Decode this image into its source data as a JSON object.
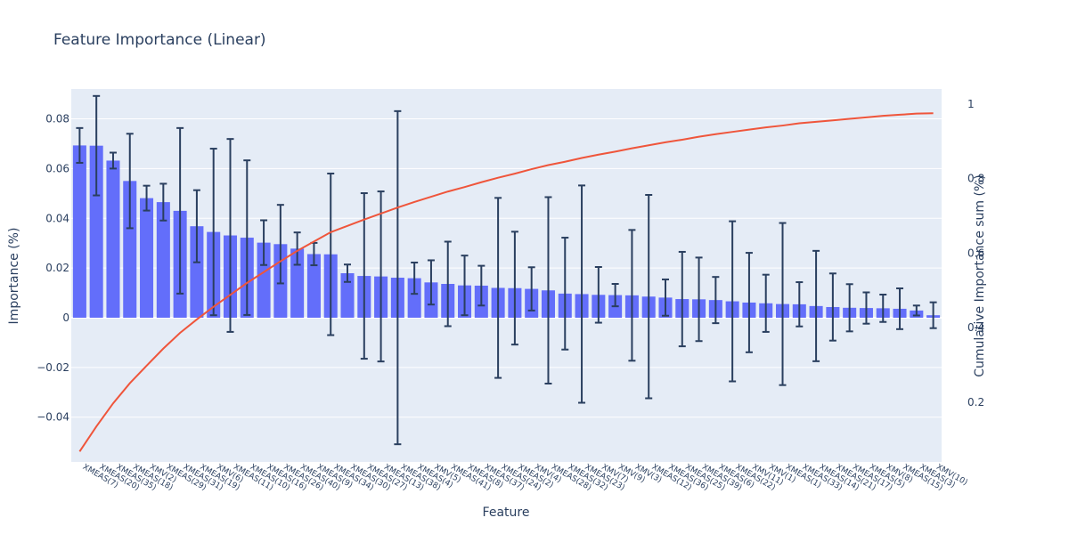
{
  "chart_data": {
    "type": "bar",
    "title": "Feature Importance (Linear)",
    "xlabel": "Feature",
    "ylabel": "Importance (%)",
    "y2label": "Cumulative Importance sum (%)",
    "ylim": [
      -0.058,
      0.092
    ],
    "y2lim": [
      0.04,
      1.04
    ],
    "yticks": [
      -0.04,
      -0.02,
      0,
      0.02,
      0.04,
      0.06,
      0.08
    ],
    "ytick_labels": [
      "−0.04",
      "−0.02",
      "0",
      "0.02",
      "0.04",
      "0.06",
      "0.08"
    ],
    "y2ticks": [
      0.2,
      0.4,
      0.6,
      0.8,
      1
    ],
    "y2tick_labels": [
      "0.2",
      "0.4",
      "0.6",
      "0.8",
      "1"
    ],
    "categories": [
      "XMEAS(7)",
      "XMEAS(20)",
      "XMEAS(35)",
      "XMEAS(18)",
      "XMV(2)",
      "XMEAS(29)",
      "XMEAS(31)",
      "XMEAS(19)",
      "XMV(6)",
      "XMEAS(11)",
      "XMEAS(10)",
      "XMEAS(16)",
      "XMEAS(26)",
      "XMEAS(40)",
      "XMEAS(9)",
      "XMEAS(34)",
      "XMEAS(30)",
      "XMEAS(27)",
      "XMEAS(13)",
      "XMEAS(38)",
      "XMEAS(4)",
      "XMV(5)",
      "XMEAS(41)",
      "XMEAS(8)",
      "XMEAS(37)",
      "XMEAS(24)",
      "XMEAS(2)",
      "XMV(4)",
      "XMEAS(28)",
      "XMEAS(32)",
      "XMEAS(23)",
      "XMV(7)",
      "XMV(9)",
      "XMV(3)",
      "XMEAS(12)",
      "XMEAS(36)",
      "XMEAS(25)",
      "XMEAS(39)",
      "XMEAS(6)",
      "XMEAS(22)",
      "XMV(11)",
      "XMV(1)",
      "XMEAS(1)",
      "XMEAS(33)",
      "XMEAS(14)",
      "XMEAS(21)",
      "XMEAS(17)",
      "XMEAS(5)",
      "XMV(8)",
      "XMEAS(15)",
      "XMEAS(3)",
      "XMV(10)"
    ],
    "series": [
      {
        "name": "Importance",
        "type": "bar",
        "color": "#636efa",
        "values": [
          0.0693,
          0.0692,
          0.0632,
          0.055,
          0.0481,
          0.0465,
          0.043,
          0.0368,
          0.0345,
          0.0331,
          0.0322,
          0.0302,
          0.0296,
          0.0278,
          0.0256,
          0.0255,
          0.0179,
          0.0168,
          0.0166,
          0.0161,
          0.0159,
          0.0142,
          0.0136,
          0.013,
          0.0129,
          0.012,
          0.0119,
          0.0116,
          0.011,
          0.0097,
          0.0095,
          0.0092,
          0.0091,
          0.009,
          0.0085,
          0.0081,
          0.0075,
          0.0074,
          0.0071,
          0.0066,
          0.0061,
          0.0058,
          0.0055,
          0.0054,
          0.0047,
          0.0043,
          0.004,
          0.0039,
          0.0038,
          0.0036,
          0.0029,
          0.001
        ],
        "error": [
          0.007,
          0.02,
          0.0032,
          0.019,
          0.005,
          0.0074,
          0.0333,
          0.0145,
          0.0335,
          0.0388,
          0.0311,
          0.009,
          0.0158,
          0.0065,
          0.0045,
          0.0325,
          0.0035,
          0.0333,
          0.0342,
          0.067,
          0.0063,
          0.0089,
          0.017,
          0.012,
          0.008,
          0.0362,
          0.0227,
          0.0087,
          0.0375,
          0.0225,
          0.0437,
          0.0112,
          0.0045,
          0.0263,
          0.0409,
          0.0073,
          0.019,
          0.0168,
          0.0093,
          0.0322,
          0.02,
          0.0115,
          0.0326,
          0.0089,
          0.0222,
          0.0135,
          0.0095,
          0.0063,
          0.0055,
          0.0082,
          0.002,
          0.0052
        ],
        "error_color": "#2a3f5f"
      },
      {
        "name": "Cumulative Importance sum",
        "type": "line",
        "axis": "y2",
        "color": "#ef553b",
        "values": [
          0.068,
          0.135,
          0.197,
          0.251,
          0.298,
          0.344,
          0.386,
          0.422,
          0.456,
          0.488,
          0.52,
          0.549,
          0.578,
          0.606,
          0.631,
          0.656,
          0.673,
          0.69,
          0.706,
          0.722,
          0.737,
          0.751,
          0.765,
          0.777,
          0.79,
          0.802,
          0.813,
          0.825,
          0.836,
          0.845,
          0.855,
          0.864,
          0.872,
          0.881,
          0.889,
          0.897,
          0.904,
          0.912,
          0.919,
          0.925,
          0.931,
          0.937,
          0.942,
          0.948,
          0.952,
          0.956,
          0.96,
          0.964,
          0.968,
          0.971,
          0.974,
          0.975
        ]
      }
    ],
    "grid": true,
    "legend": "none"
  },
  "colors": {
    "plot_bg": "#e5ecf6",
    "grid": "#ffffff",
    "text": "#2a3f5f",
    "bar": "#636efa",
    "line": "#ef553b",
    "error": "#2a3f5f"
  }
}
